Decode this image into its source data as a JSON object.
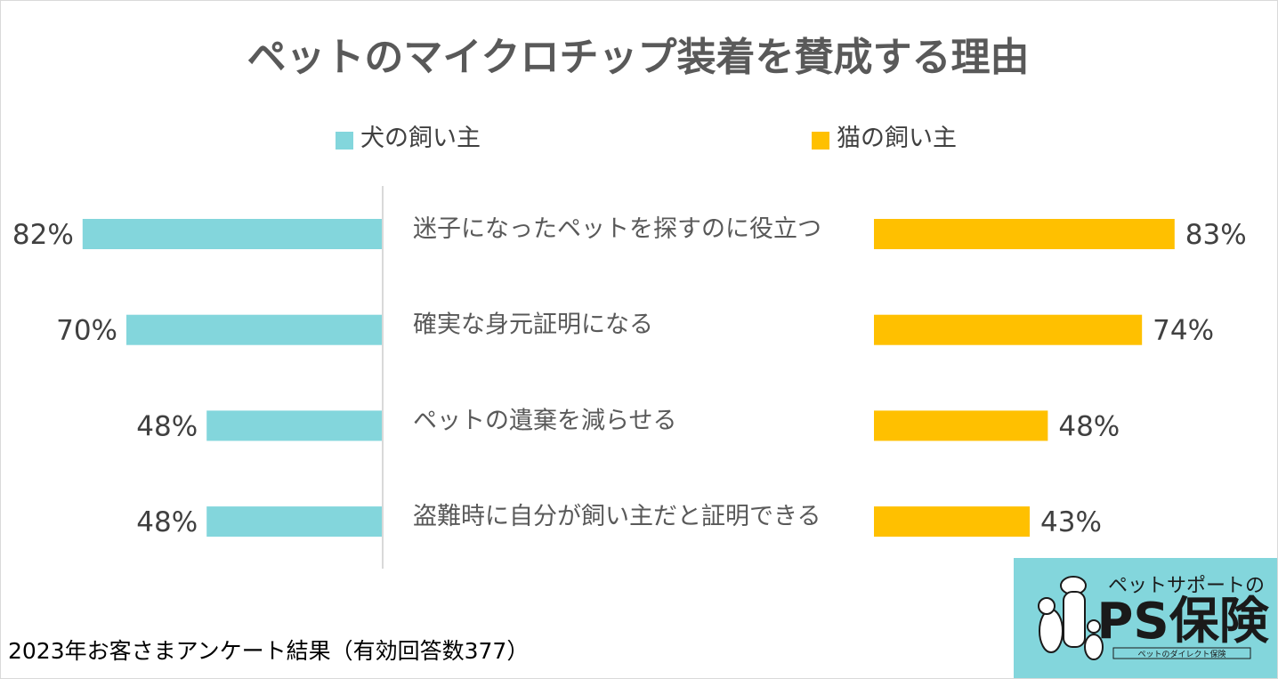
{
  "chart_data": {
    "type": "bar",
    "title": "ペットのマイクロチップ装着を賛成する理由",
    "categories": [
      "迷子になったペットを探すのに役立つ",
      "確実な身元証明になる",
      "ペットの遺棄を減らせる",
      "盗難時に自分が飼い主だと証明できる"
    ],
    "series": [
      {
        "name": "犬の飼い主",
        "values": [
          82,
          70,
          48,
          48
        ],
        "labels": [
          "82%",
          "70%",
          "48%",
          "48%"
        ],
        "color": "#83d6dc"
      },
      {
        "name": "猫の飼い主",
        "values": [
          83,
          74,
          48,
          43
        ],
        "labels": [
          "83%",
          "74%",
          "48%",
          "43%"
        ],
        "color": "#ffc000"
      }
    ],
    "xlim": [
      0,
      100
    ],
    "grid": false,
    "legend_position": "top"
  },
  "footnote": "2023年お客さまアンケート結果（有効回答数377）",
  "logo": {
    "tagline": "ペットサポートの",
    "name": "PS保険",
    "sub": "ペットのダイレクト保険",
    "bg_color": "#83d6dc",
    "icon": "pets-silhouette-icon"
  }
}
